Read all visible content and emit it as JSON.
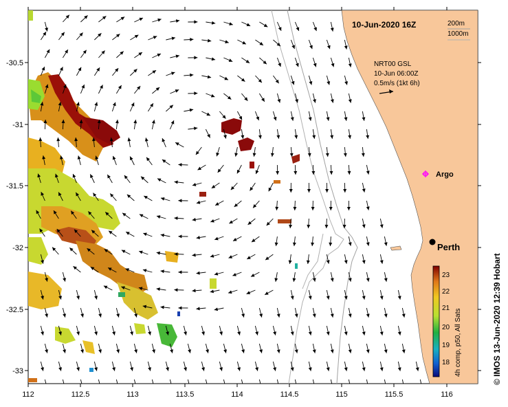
{
  "header": {
    "date_label": "10-Jun-2020 16Z"
  },
  "isobaths": {
    "a": "200m",
    "b": "1000m"
  },
  "current_legend": {
    "source": "NRT00 GSL",
    "time": "10-Jun 06:00Z",
    "scale": "0.5m/s (1kt 6h)"
  },
  "places": [
    {
      "name": "Argo",
      "lon": 115.75,
      "lat": -31.45,
      "symbol": "asterisk",
      "color": "#ff00ff"
    },
    {
      "name": "Perth",
      "lon": 115.86,
      "lat": -31.95,
      "symbol": "dot",
      "color": "#000000"
    }
  ],
  "axes": {
    "x_ticks": [
      "112",
      "112.5",
      "113",
      "113.5",
      "114",
      "114.5",
      "115",
      "115.5",
      "116"
    ],
    "y_ticks": [
      "-30.5",
      "-31",
      "-31.5",
      "-32",
      "-32.5",
      "-33"
    ],
    "xlim": [
      112,
      116.3
    ],
    "ylim": [
      -33.1,
      -30.05
    ]
  },
  "colorbar": {
    "label": "4h comp, p50, All Sats",
    "ticks": [
      "23",
      "22",
      "21",
      "20",
      "19",
      "18"
    ],
    "range": [
      17.5,
      23.4
    ]
  },
  "credit": "© IMOS 13-Jun-2020 12:39 Hobart",
  "colors": {
    "land": "#f8c79a",
    "ocean": "#ffffff",
    "isobath": "#a0a0a0"
  }
}
